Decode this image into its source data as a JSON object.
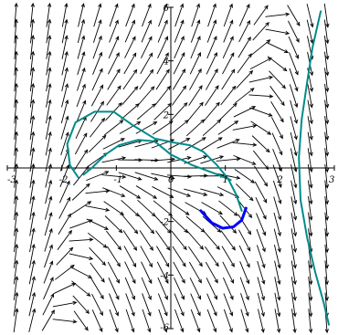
{
  "chart_data": {
    "type": "line",
    "title": "",
    "xlabel": "",
    "ylabel": "",
    "xlim": [
      -3,
      3
    ],
    "ylim": [
      -6,
      6
    ],
    "x_ticks": [
      -3,
      -2,
      -1,
      0,
      1,
      2,
      3
    ],
    "y_ticks": [
      -6,
      -4,
      -2,
      2,
      4,
      6
    ],
    "x_tick_labels": [
      "-3",
      "-2",
      "-1",
      "0",
      "1",
      "2",
      "3"
    ],
    "y_tick_labels": [
      "-6",
      "-4",
      "-2",
      "2",
      "4",
      "6"
    ],
    "grid": false,
    "direction_field": {
      "dx": "1",
      "dy": "y - x^3 + x",
      "x_values": [
        -2.85,
        -2.55,
        -2.25,
        -1.95,
        -1.65,
        -1.35,
        -1.05,
        -0.75,
        -0.45,
        -0.15,
        0.15,
        0.45,
        0.75,
        1.05,
        1.35,
        1.65,
        1.95,
        2.25,
        2.55,
        2.85
      ],
      "y_values": [
        -5.7,
        -5.1,
        -4.5,
        -3.9,
        -3.3,
        -2.7,
        -2.1,
        -1.5,
        -0.9,
        -0.3,
        0.3,
        0.9,
        1.5,
        2.1,
        2.7,
        3.3,
        3.9,
        4.5,
        5.1,
        5.7
      ],
      "color": "#000000"
    },
    "series": [
      {
        "color": "#008b8b",
        "x": [
          -1.7,
          -1.85,
          -1.9,
          -1.75,
          -1.4,
          -1.05,
          -0.7,
          -0.3,
          0.05,
          0.35,
          0.6,
          0.85,
          1.05,
          1.2,
          1.3
        ],
        "y": [
          -0.35,
          0.1,
          0.9,
          1.7,
          2.1,
          2.1,
          1.6,
          1.1,
          0.95,
          0.85,
          0.6,
          0.1,
          -0.4,
          -1.0,
          -1.6
        ]
      },
      {
        "color": "#008b8b",
        "x": [
          -1.6,
          -1.45,
          -1.2,
          -0.95,
          -0.6,
          -0.3,
          0.0,
          0.4,
          0.8,
          1.1
        ],
        "y": [
          -0.25,
          0.0,
          0.5,
          0.85,
          1.05,
          1.0,
          0.5,
          0.1,
          -0.2,
          -0.45
        ]
      },
      {
        "color": "#008b8b",
        "x": [
          2.75,
          2.6,
          2.5,
          2.4,
          2.35,
          2.38,
          2.5,
          2.65,
          2.8,
          2.9
        ],
        "y": [
          5.85,
          4.5,
          3.2,
          1.8,
          0.4,
          -1.2,
          -2.6,
          -3.9,
          -5.0,
          -5.85
        ]
      },
      {
        "color": "#0000ff",
        "x": [
          0.55,
          0.75,
          0.95,
          1.15,
          1.3,
          1.38
        ],
        "y": [
          -1.6,
          -2.05,
          -2.25,
          -2.2,
          -1.95,
          -1.5
        ]
      }
    ]
  }
}
